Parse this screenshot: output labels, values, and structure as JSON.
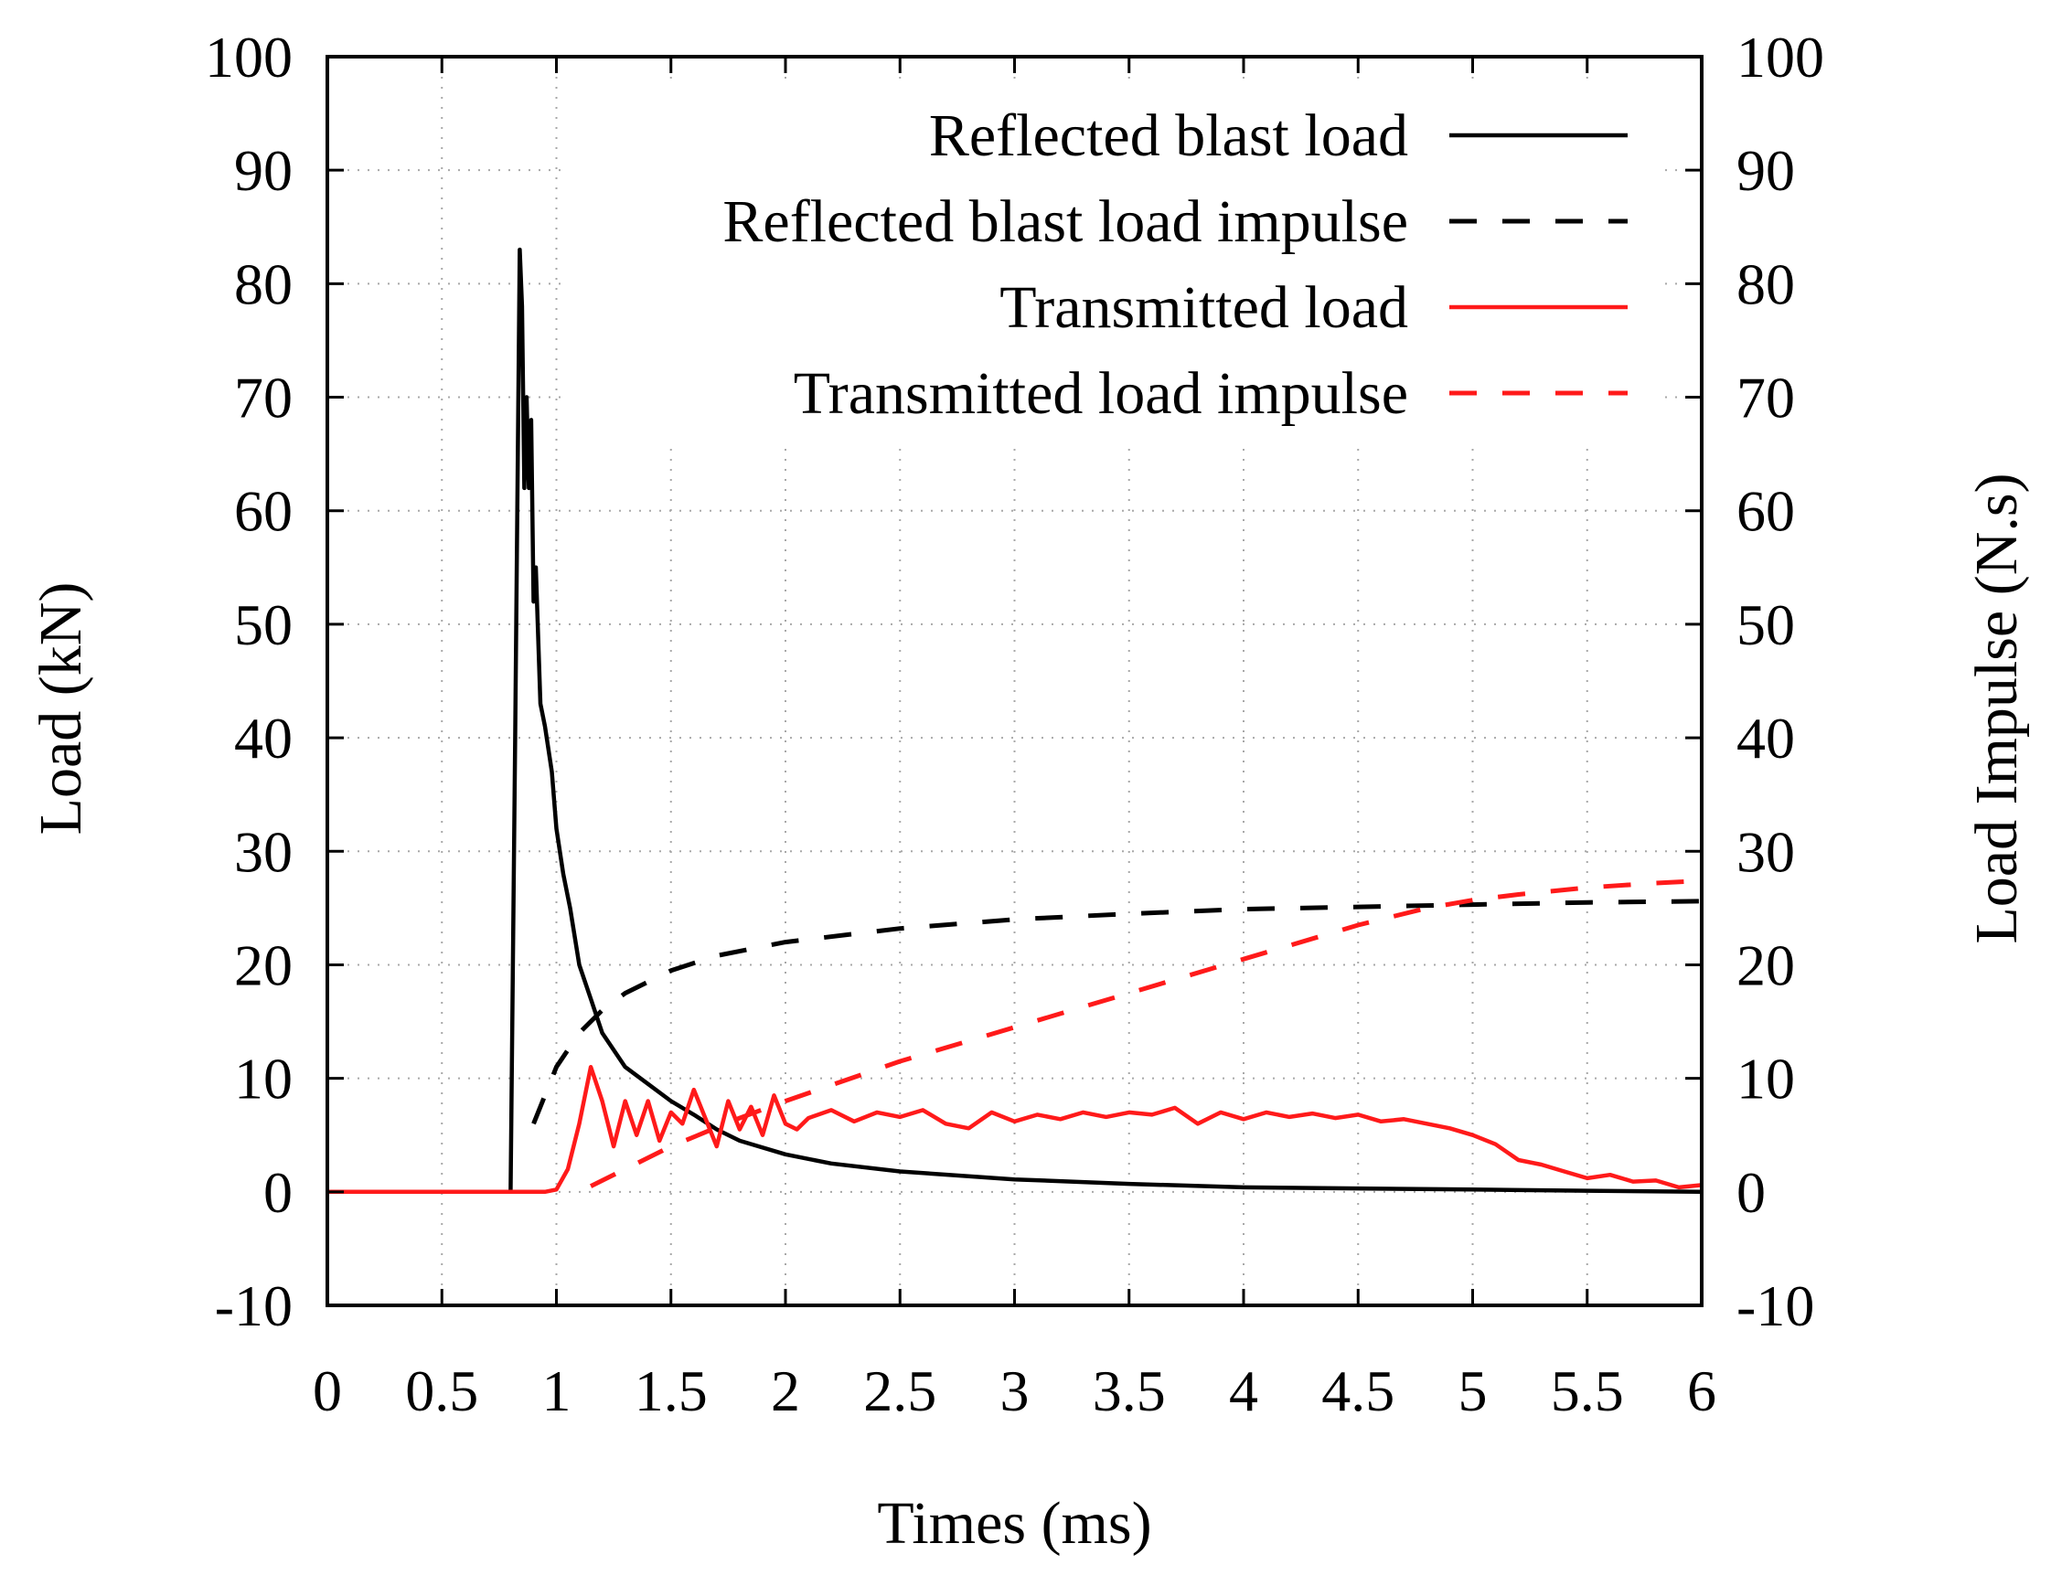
{
  "chart_data": {
    "type": "line",
    "title": "",
    "xlabel": "Times (ms)",
    "ylabel": "Load (kN)",
    "y2label": "Load Impulse (N.s)",
    "xlim": [
      0,
      6
    ],
    "ylim": [
      -10,
      100
    ],
    "y2lim": [
      -10,
      100
    ],
    "xticks": [
      "0",
      "0.5",
      "1",
      "1.5",
      "2",
      "2.5",
      "3",
      "3.5",
      "4",
      "4.5",
      "5",
      "5.5",
      "6"
    ],
    "yticks": [
      "-10",
      "0",
      "10",
      "20",
      "30",
      "40",
      "50",
      "60",
      "70",
      "80",
      "90",
      "100"
    ],
    "y2ticks": [
      "-10",
      "0",
      "10",
      "20",
      "30",
      "40",
      "50",
      "60",
      "70",
      "80",
      "90",
      "100"
    ],
    "grid": true,
    "legend_position": "top-right",
    "series": [
      {
        "name": "Reflected blast load",
        "axis": "left",
        "color": "#000000",
        "style": "solid",
        "x": [
          0,
          0.5,
          0.8,
          0.82,
          0.84,
          0.85,
          0.86,
          0.87,
          0.88,
          0.89,
          0.9,
          0.91,
          0.93,
          0.95,
          0.98,
          1.0,
          1.03,
          1.06,
          1.1,
          1.15,
          1.2,
          1.3,
          1.4,
          1.5,
          1.6,
          1.7,
          1.8,
          2.0,
          2.2,
          2.5,
          3.0,
          3.5,
          4.0,
          4.5,
          5.0,
          5.5,
          6.0
        ],
        "y": [
          0,
          0,
          0,
          40,
          83,
          78,
          62,
          70,
          62,
          68,
          52,
          55,
          43,
          41,
          37,
          32,
          28,
          25,
          20,
          17,
          14,
          11,
          9.5,
          8,
          6.8,
          5.5,
          4.5,
          3.3,
          2.5,
          1.8,
          1.1,
          0.7,
          0.4,
          0.3,
          0.2,
          0.1,
          0
        ]
      },
      {
        "name": "Reflected blast load impulse",
        "axis": "right",
        "color": "#000000",
        "style": "dashed",
        "x": [
          0.9,
          1.0,
          1.1,
          1.2,
          1.3,
          1.5,
          1.7,
          2.0,
          2.5,
          3.0,
          3.5,
          4.0,
          4.5,
          5.0,
          5.5,
          6.0
        ],
        "y": [
          6,
          11,
          14,
          16,
          17.5,
          19.5,
          20.8,
          22,
          23.2,
          24,
          24.5,
          24.9,
          25.1,
          25.3,
          25.5,
          25.6
        ]
      },
      {
        "name": "Transmitted load",
        "axis": "left",
        "color": "#ff1a1a",
        "style": "solid",
        "x": [
          0,
          0.9,
          0.95,
          1.0,
          1.05,
          1.1,
          1.15,
          1.2,
          1.25,
          1.3,
          1.35,
          1.4,
          1.45,
          1.5,
          1.55,
          1.6,
          1.65,
          1.7,
          1.75,
          1.8,
          1.85,
          1.9,
          1.95,
          2.0,
          2.05,
          2.1,
          2.2,
          2.3,
          2.4,
          2.5,
          2.6,
          2.7,
          2.8,
          2.9,
          3.0,
          3.1,
          3.2,
          3.3,
          3.4,
          3.5,
          3.6,
          3.7,
          3.8,
          3.9,
          4.0,
          4.1,
          4.2,
          4.3,
          4.4,
          4.5,
          4.6,
          4.7,
          4.8,
          4.9,
          5.0,
          5.1,
          5.2,
          5.3,
          5.4,
          5.5,
          5.6,
          5.7,
          5.8,
          5.9,
          6.0
        ],
        "y": [
          0,
          0,
          0,
          0.2,
          2,
          6,
          11,
          8,
          4,
          8,
          5,
          8,
          4.5,
          7,
          6,
          9,
          6.5,
          4,
          8,
          5.5,
          7.5,
          5,
          8.5,
          6,
          5.5,
          6.5,
          7.2,
          6.2,
          7.0,
          6.6,
          7.2,
          6.0,
          5.6,
          7.0,
          6.2,
          6.8,
          6.4,
          7.0,
          6.6,
          7.0,
          6.8,
          7.4,
          6.0,
          7.0,
          6.4,
          7.0,
          6.6,
          6.9,
          6.5,
          6.8,
          6.2,
          6.4,
          6.0,
          5.6,
          5.0,
          4.2,
          2.8,
          2.4,
          1.8,
          1.2,
          1.5,
          0.9,
          1.0,
          0.4,
          0.6
        ]
      },
      {
        "name": "Transmitted load impulse",
        "axis": "right",
        "color": "#ff1a1a",
        "style": "dashed",
        "x": [
          1.15,
          1.3,
          1.5,
          1.8,
          2.0,
          2.5,
          3.0,
          3.5,
          4.0,
          4.5,
          4.8,
          5.0,
          5.2,
          5.5,
          5.8,
          6.0
        ],
        "y": [
          0.5,
          2,
          4,
          6.5,
          8,
          11.5,
          14.5,
          17.5,
          20.5,
          23.5,
          25,
          25.7,
          26.2,
          26.8,
          27.2,
          27.4
        ]
      }
    ]
  }
}
